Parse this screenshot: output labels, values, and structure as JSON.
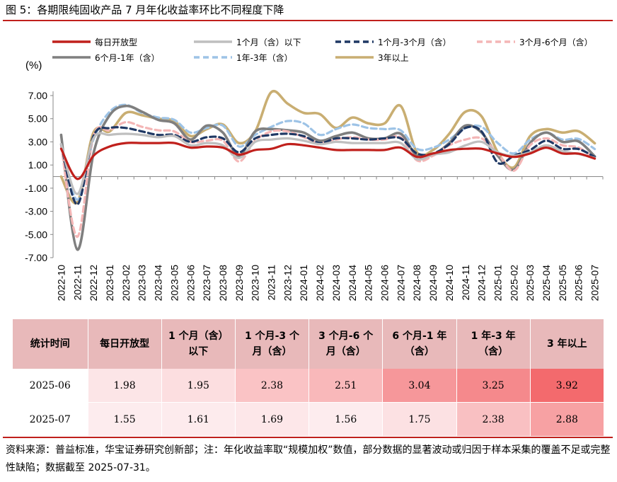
{
  "figure_title": "图 5：各期限纯固收产品 7 月年化收益率环比不同程度下降",
  "unit_label": "(%)",
  "source_note": "资料来源：普益标准，华宝证券研究创新部；注：年化收益率取“规模加权”数值，部分数据的显著波动或归因于样本采集的覆盖不足或完整性缺陷；数据截至 2025-07-31。",
  "colors": {
    "brand_red": "#c0201c",
    "header_bg": "#e8b9ba",
    "daily": "#c0201c",
    "m1": "#bfbfbf",
    "m1_3": "#1f3864",
    "m3_6": "#f4b6b6",
    "m6_12": "#7f7f7f",
    "y1_3": "#9dc3e6",
    "y3plus": "#c9ae72"
  },
  "chart_data": {
    "type": "line",
    "ylim": [
      -7,
      8
    ],
    "yticks": [
      "7.00",
      "5.00",
      "3.00",
      "1.00",
      "-1.00",
      "-3.00",
      "-5.00",
      "-7.00"
    ],
    "ytick_values": [
      7,
      5,
      3,
      1,
      -1,
      -3,
      -5,
      -7
    ],
    "legend_position": "top",
    "categories": [
      "2022-10",
      "2022-11",
      "2022-12",
      "2023-01",
      "2023-02",
      "2023-03",
      "2023-04",
      "2023-05",
      "2023-06",
      "2023-07",
      "2023-08",
      "2023-09",
      "2023-10",
      "2023-11",
      "2023-12",
      "2024-01",
      "2024-02",
      "2024-03",
      "2024-04",
      "2024-05",
      "2024-06",
      "2024-07",
      "2024-08",
      "2024-09",
      "2024-10",
      "2024-11",
      "2024-12",
      "2025-01",
      "2025-02",
      "2025-03",
      "2025-04",
      "2025-05",
      "2025-06",
      "2025-07"
    ],
    "series": [
      {
        "key": "daily",
        "name": "每日开放型",
        "dash": "",
        "width": 3.2,
        "values": [
          2.4,
          -0.2,
          1.8,
          2.6,
          2.9,
          2.9,
          2.9,
          2.9,
          2.5,
          2.6,
          2.5,
          1.9,
          2.3,
          2.4,
          2.8,
          2.7,
          2.5,
          2.3,
          2.3,
          2.3,
          2.3,
          2.5,
          1.7,
          2.0,
          2.3,
          2.4,
          2.4,
          2.0,
          1.7,
          2.0,
          2.5,
          2.0,
          1.98,
          1.55
        ]
      },
      {
        "key": "m1",
        "name": "1个月（含）以下",
        "dash": "",
        "width": 3.2,
        "values": [
          2.8,
          -1.5,
          3.3,
          3.6,
          3.7,
          3.6,
          3.4,
          3.5,
          2.7,
          2.9,
          2.7,
          1.6,
          3.0,
          3.2,
          3.3,
          3.1,
          2.8,
          3.0,
          2.9,
          2.9,
          2.9,
          2.9,
          1.5,
          1.9,
          2.1,
          2.7,
          3.0,
          2.1,
          1.8,
          2.1,
          2.7,
          2.2,
          1.95,
          1.61
        ]
      },
      {
        "key": "m1_3",
        "name": "1个月-3个月（含）",
        "dash": "8,5",
        "width": 3.2,
        "values": [
          2.8,
          -2.4,
          3.5,
          4.2,
          4.2,
          3.9,
          3.6,
          3.6,
          3.0,
          3.4,
          3.3,
          2.1,
          3.3,
          3.6,
          3.7,
          3.5,
          2.9,
          3.3,
          3.3,
          3.2,
          3.3,
          3.3,
          2.0,
          2.0,
          2.8,
          4.2,
          3.9,
          1.2,
          1.8,
          2.3,
          3.1,
          2.4,
          2.38,
          1.69
        ]
      },
      {
        "key": "m3_6",
        "name": "3个月-6个月（含）",
        "dash": "8,5",
        "width": 3.2,
        "values": [
          2.7,
          -5.2,
          3.5,
          4.0,
          4.7,
          4.3,
          4.0,
          3.9,
          3.0,
          3.1,
          3.1,
          1.3,
          3.1,
          3.9,
          3.9,
          3.4,
          2.9,
          3.2,
          3.4,
          3.2,
          3.2,
          3.4,
          1.4,
          1.8,
          2.7,
          3.2,
          3.3,
          2.0,
          0.5,
          2.7,
          3.3,
          2.7,
          2.51,
          1.56
        ]
      },
      {
        "key": "m6_12",
        "name": "6个月-1年（含）",
        "dash": "",
        "width": 3.6,
        "values": [
          3.6,
          -6.3,
          2.0,
          5.3,
          6.1,
          5.6,
          4.9,
          4.6,
          3.2,
          4.4,
          3.8,
          1.8,
          3.9,
          4.1,
          4.0,
          3.8,
          3.1,
          3.5,
          3.8,
          3.3,
          3.3,
          3.7,
          1.8,
          1.9,
          2.9,
          4.4,
          3.8,
          1.8,
          0.6,
          2.9,
          3.8,
          3.0,
          3.04,
          1.75
        ]
      },
      {
        "key": "y1_3",
        "name": "1年-3年（含）",
        "dash": "8,5",
        "width": 3.2,
        "values": [
          2.8,
          -2.0,
          3.2,
          5.6,
          6.2,
          5.5,
          5.1,
          4.9,
          3.8,
          4.2,
          4.4,
          2.6,
          3.6,
          4.3,
          4.8,
          4.6,
          3.6,
          4.1,
          4.5,
          4.2,
          4.1,
          4.0,
          2.4,
          2.5,
          3.2,
          4.2,
          4.3,
          2.9,
          2.0,
          3.2,
          3.8,
          3.2,
          3.25,
          2.38
        ]
      },
      {
        "key": "y3plus",
        "name": "3年以上",
        "dash": "",
        "width": 3.6,
        "values": [
          0.0,
          -2.2,
          3.8,
          3.9,
          5.5,
          5.3,
          5.0,
          4.8,
          3.5,
          4.1,
          4.5,
          2.9,
          3.9,
          7.3,
          6.3,
          5.5,
          5.4,
          4.2,
          5.1,
          4.6,
          4.6,
          6.1,
          2.1,
          2.3,
          3.7,
          5.6,
          5.2,
          2.1,
          0.8,
          3.5,
          4.1,
          3.8,
          3.92,
          2.88
        ]
      }
    ]
  },
  "table": {
    "headers": [
      "统计时间",
      "每日开放型",
      "1 个月（含）以下",
      "1 个月-3 个月（含）",
      "3 个月-6 个月（含）",
      "6 个月-1 年（含）",
      "1 年-3 年（含）",
      "3 年以上"
    ],
    "rows": [
      {
        "date": "2025-06",
        "values": [
          "1.98",
          "1.95",
          "2.38",
          "2.51",
          "3.04",
          "3.25",
          "3.92"
        ],
        "heat": [
          0.05,
          0.1,
          0.3,
          0.38,
          0.62,
          0.72,
          0.95
        ]
      },
      {
        "date": "2025-07",
        "values": [
          "1.55",
          "1.61",
          "1.69",
          "1.56",
          "1.75",
          "2.38",
          "2.88"
        ],
        "heat": [
          0.0,
          0.01,
          0.04,
          0.0,
          0.08,
          0.32,
          0.55
        ]
      }
    ]
  }
}
